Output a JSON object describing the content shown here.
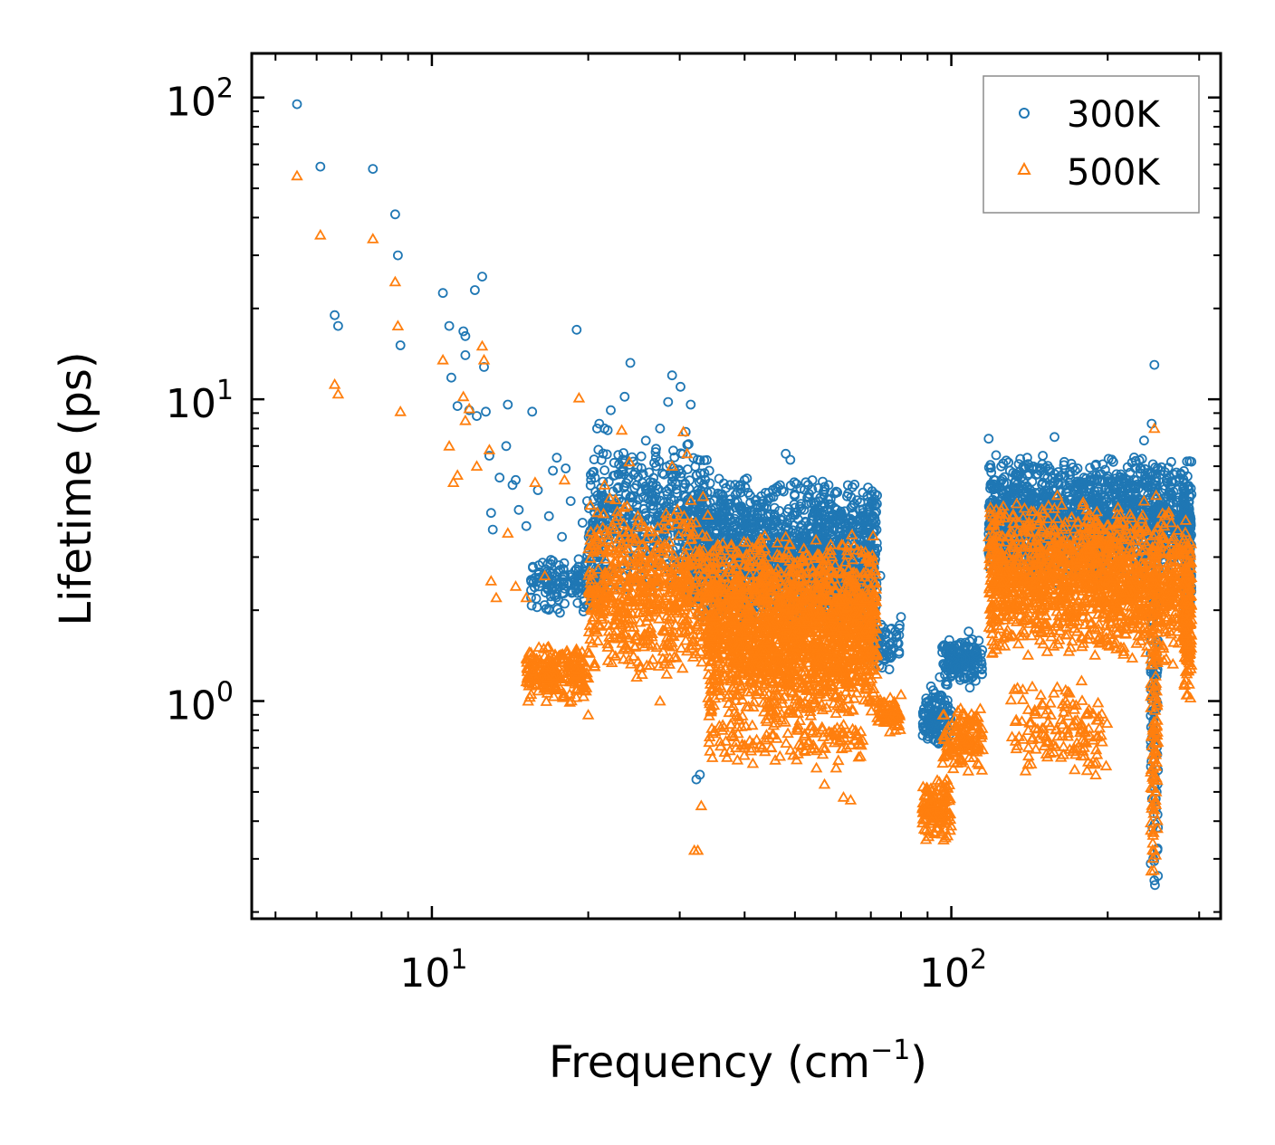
{
  "chart_data": {
    "type": "scatter",
    "xscale": "log",
    "yscale": "log",
    "xlabel": "Frequency (cm",
    "xlabel_sup": "−1",
    "xlabel_close": ")",
    "ylabel": "Lifetime (ps)",
    "xlim": [
      4.5,
      330
    ],
    "ylim": [
      0.19,
      140
    ],
    "xticks": [
      {
        "value": 10,
        "base": "10",
        "exp": "1"
      },
      {
        "value": 100,
        "base": "10",
        "exp": "2"
      }
    ],
    "yticks": [
      {
        "value": 1,
        "base": "10",
        "exp": "0"
      },
      {
        "value": 10,
        "base": "10",
        "exp": "1"
      },
      {
        "value": 100,
        "base": "10",
        "exp": "2"
      }
    ],
    "legend": {
      "position": "top-right"
    },
    "series": [
      {
        "name": "300K",
        "color": "#1f77b4",
        "marker": "circle",
        "points": [
          [
            5.5,
            95
          ],
          [
            6.1,
            59
          ],
          [
            6.5,
            19
          ],
          [
            6.6,
            17.5
          ],
          [
            7.7,
            58
          ],
          [
            8.5,
            41
          ],
          [
            8.6,
            30
          ],
          [
            8.7,
            15.1
          ],
          [
            10.5,
            22.5
          ],
          [
            10.8,
            17.5
          ],
          [
            10.9,
            11.8
          ],
          [
            11.2,
            9.5
          ],
          [
            11.5,
            16.8
          ],
          [
            11.6,
            16.2
          ],
          [
            11.6,
            14
          ],
          [
            11.8,
            9.2
          ],
          [
            12.1,
            23
          ],
          [
            12.2,
            8.8
          ],
          [
            12.5,
            25.5
          ],
          [
            12.6,
            12.8
          ],
          [
            12.7,
            9.1
          ],
          [
            12.9,
            6.5
          ],
          [
            13.0,
            4.2
          ],
          [
            13.1,
            3.7
          ],
          [
            13.5,
            5.5
          ],
          [
            13.9,
            7.0
          ],
          [
            14.0,
            9.6
          ],
          [
            14.3,
            5.2
          ],
          [
            14.5,
            5.4
          ],
          [
            14.7,
            4.3
          ],
          [
            15.2,
            3.8
          ],
          [
            15.6,
            9.1
          ],
          [
            16.0,
            5.0
          ],
          [
            16.8,
            4.1
          ],
          [
            17.1,
            5.8
          ],
          [
            17.4,
            6.4
          ],
          [
            17.8,
            3.5
          ],
          [
            18.1,
            5.9
          ],
          [
            18.5,
            4.6
          ],
          [
            19.0,
            17
          ],
          [
            19.5,
            3.9
          ],
          [
            19.9,
            4.6
          ],
          [
            20.5,
            3.9
          ],
          [
            20.6,
            5.5
          ],
          [
            20.8,
            8.0
          ],
          [
            21.0,
            8.3
          ],
          [
            21.5,
            8.0
          ],
          [
            21.8,
            7.9
          ],
          [
            22.1,
            9.2
          ],
          [
            22.5,
            5.6
          ],
          [
            23.5,
            10.2
          ],
          [
            24.1,
            13.2
          ],
          [
            27.5,
            8.0
          ],
          [
            28.5,
            9.8
          ],
          [
            29.0,
            12.0
          ],
          [
            30.1,
            11
          ],
          [
            30.8,
            7.8
          ],
          [
            31.2,
            7.1
          ],
          [
            31.5,
            9.6
          ],
          [
            32.3,
            0.55
          ],
          [
            32.8,
            0.57
          ],
          [
            34.2,
            5.8
          ],
          [
            37.5,
            5.2
          ],
          [
            40.0,
            5.4
          ],
          [
            41.0,
            4.8
          ],
          [
            44.5,
            4.9
          ],
          [
            48.0,
            6.6
          ],
          [
            49.0,
            6.3
          ],
          [
            53.0,
            5.2
          ],
          [
            57.0,
            4.5
          ],
          [
            62.0,
            3.4
          ],
          [
            66.0,
            3.1
          ],
          [
            72.0,
            3.2
          ],
          [
            73.0,
            2.6
          ],
          [
            75.0,
            1.5
          ],
          [
            78.0,
            1.7
          ],
          [
            80.0,
            1.9
          ],
          [
            90.0,
            0.75
          ],
          [
            93.0,
            0.85
          ],
          [
            95.0,
            1.2
          ],
          [
            100.0,
            1.5
          ],
          [
            105.0,
            1.3
          ],
          [
            108.0,
            1.7
          ],
          [
            112.0,
            1.45
          ],
          [
            118.0,
            7.4
          ],
          [
            119.0,
            5.2
          ],
          [
            123.0,
            4.5
          ],
          [
            128.0,
            4.8
          ],
          [
            133.0,
            5.1
          ],
          [
            140.0,
            6.4
          ],
          [
            145.0,
            4.9
          ],
          [
            150.0,
            6.5
          ],
          [
            158.0,
            7.5
          ],
          [
            165.0,
            6.2
          ],
          [
            175.0,
            5.9
          ],
          [
            185.0,
            5.2
          ],
          [
            190.0,
            5.6
          ],
          [
            205.0,
            6.2
          ],
          [
            215.0,
            5.3
          ],
          [
            225.0,
            5.4
          ],
          [
            235.0,
            7.3
          ],
          [
            243.0,
            8.3
          ],
          [
            246.0,
            13
          ],
          [
            248.0,
            5.5
          ],
          [
            265.0,
            6.2
          ],
          [
            275.0,
            5.4
          ],
          [
            280.0,
            4.6
          ],
          [
            285.0,
            4.1
          ]
        ],
        "clusters": [
          {
            "x": [
              15.5,
              21
            ],
            "ymin": 1.9,
            "ymax": 3.2,
            "n": 160
          },
          {
            "x": [
              20,
              34
            ],
            "ymin": 2.2,
            "ymax": 7.5,
            "n": 520
          },
          {
            "x": [
              32,
              72
            ],
            "ymin": 1.7,
            "ymax": 5.6,
            "n": 1500
          },
          {
            "x": [
              70,
              80
            ],
            "ymin": 1.25,
            "ymax": 1.85,
            "n": 70
          },
          {
            "x": [
              88,
              100
            ],
            "ymin": 0.68,
            "ymax": 1.15,
            "n": 120
          },
          {
            "x": [
              96,
              115
            ],
            "ymin": 1.1,
            "ymax": 1.65,
            "n": 160
          },
          {
            "x": [
              118,
              200
            ],
            "ymin": 2.4,
            "ymax": 6.6,
            "n": 900
          },
          {
            "x": [
              200,
              290
            ],
            "ymin": 2.5,
            "ymax": 6.8,
            "n": 550
          },
          {
            "x": [
              242,
              250
            ],
            "ymin": 0.22,
            "ymax": 5.2,
            "n": 110
          },
          {
            "x": [
              280,
              290
            ],
            "ymin": 1.6,
            "ymax": 5.3,
            "n": 120
          }
        ]
      },
      {
        "name": "500K",
        "color": "#ff7f0e",
        "marker": "triangle",
        "points": [
          [
            5.5,
            55
          ],
          [
            6.1,
            35
          ],
          [
            6.5,
            11.2
          ],
          [
            6.6,
            10.4
          ],
          [
            7.7,
            34
          ],
          [
            8.5,
            24.5
          ],
          [
            8.6,
            17.5
          ],
          [
            8.7,
            9.1
          ],
          [
            10.5,
            13.5
          ],
          [
            10.8,
            7.0
          ],
          [
            11.0,
            5.3
          ],
          [
            11.2,
            5.6
          ],
          [
            11.5,
            10.2
          ],
          [
            11.6,
            8.5
          ],
          [
            11.8,
            9.3
          ],
          [
            12.2,
            6.0
          ],
          [
            12.5,
            15
          ],
          [
            12.6,
            13.5
          ],
          [
            12.9,
            6.8
          ],
          [
            13.0,
            2.5
          ],
          [
            13.3,
            2.2
          ],
          [
            14.0,
            3.6
          ],
          [
            14.5,
            2.4
          ],
          [
            15.2,
            2.2
          ],
          [
            15.8,
            5.3
          ],
          [
            16.5,
            2.6
          ],
          [
            18.0,
            5.4
          ],
          [
            19.2,
            10.1
          ],
          [
            20.0,
            0.9
          ],
          [
            21.5,
            5.2
          ],
          [
            22.0,
            4.7
          ],
          [
            23.2,
            7.9
          ],
          [
            24.0,
            6.2
          ],
          [
            26.0,
            1.6
          ],
          [
            27.5,
            1.0
          ],
          [
            29.0,
            6.0
          ],
          [
            30.5,
            7.8
          ],
          [
            31.0,
            6.6
          ],
          [
            32.0,
            0.32
          ],
          [
            32.5,
            0.32
          ],
          [
            33.0,
            0.45
          ],
          [
            34.0,
            2.9
          ],
          [
            37.0,
            0.65
          ],
          [
            38.5,
            0.7
          ],
          [
            40.0,
            0.7
          ],
          [
            45.0,
            0.7
          ],
          [
            48.0,
            3.5
          ],
          [
            52.0,
            3.2
          ],
          [
            55.0,
            0.6
          ],
          [
            57.0,
            0.53
          ],
          [
            60.0,
            0.6
          ],
          [
            62.0,
            0.48
          ],
          [
            64.0,
            0.47
          ],
          [
            72.0,
            1.0
          ],
          [
            75.0,
            0.85
          ],
          [
            78.0,
            0.8
          ],
          [
            80.0,
            1.05
          ],
          [
            88.0,
            0.44
          ],
          [
            92.0,
            0.4
          ],
          [
            98.0,
            0.55
          ],
          [
            110.0,
            0.75
          ],
          [
            118.0,
            3.5
          ],
          [
            135.0,
            3.9
          ],
          [
            150.0,
            4.2
          ],
          [
            160.0,
            4.8
          ],
          [
            175.0,
            3.9
          ],
          [
            190.0,
            3.7
          ],
          [
            220.0,
            3.8
          ],
          [
            235.0,
            4.6
          ],
          [
            246.0,
            8.0
          ],
          [
            248.0,
            4.8
          ],
          [
            265.0,
            3.9
          ],
          [
            285.0,
            3.3
          ]
        ],
        "clusters": [
          {
            "x": [
              15.2,
              20
            ],
            "ymin": 0.98,
            "ymax": 1.55,
            "n": 220
          },
          {
            "x": [
              20,
              34
            ],
            "ymin": 1.15,
            "ymax": 4.8,
            "n": 650
          },
          {
            "x": [
              34,
              72
            ],
            "ymin": 0.85,
            "ymax": 3.6,
            "n": 1900
          },
          {
            "x": [
              34,
              68
            ],
            "ymin": 0.6,
            "ymax": 1.0,
            "n": 150
          },
          {
            "x": [
              72,
              80
            ],
            "ymin": 0.78,
            "ymax": 1.05,
            "n": 60
          },
          {
            "x": [
              88,
              100
            ],
            "ymin": 0.34,
            "ymax": 0.58,
            "n": 140
          },
          {
            "x": [
              96,
              115
            ],
            "ymin": 0.58,
            "ymax": 0.98,
            "n": 140
          },
          {
            "x": [
              118,
              200
            ],
            "ymin": 1.4,
            "ymax": 4.7,
            "n": 900
          },
          {
            "x": [
              130,
              200
            ],
            "ymin": 0.55,
            "ymax": 1.2,
            "n": 140
          },
          {
            "x": [
              200,
              290
            ],
            "ymin": 1.3,
            "ymax": 4.5,
            "n": 600
          },
          {
            "x": [
              242,
              250
            ],
            "ymin": 0.22,
            "ymax": 4.2,
            "n": 110
          },
          {
            "x": [
              280,
              290
            ],
            "ymin": 1.0,
            "ymax": 3.5,
            "n": 120
          }
        ]
      }
    ]
  }
}
